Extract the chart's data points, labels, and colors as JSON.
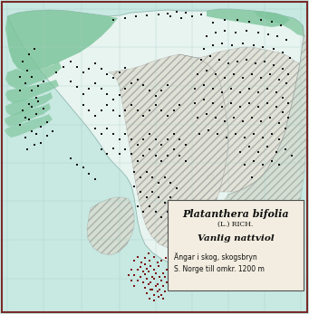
{
  "title": "Platanthera bifolia",
  "subtitle1": "(L.) RICH.",
  "subtitle2": "Vanlig nattviol",
  "description": "Ängar i skog, skogsbryn\nS. Norge till omkr. 1200 m",
  "bg_color": "#c8e8e2",
  "map_bg": "#c8e8e2",
  "land_color": "#e8f4f0",
  "forest_color": "#7cc49a",
  "hatch_facecolor": "#ddd8c8",
  "border_color": "#7a2a2a",
  "legend_bg": "#f2ede0",
  "dot_color": "#111111",
  "red_dot_color": "#7a1515",
  "grid_color": "#a8d0c8",
  "figsize": [
    3.41,
    3.47
  ],
  "dpi": 100
}
